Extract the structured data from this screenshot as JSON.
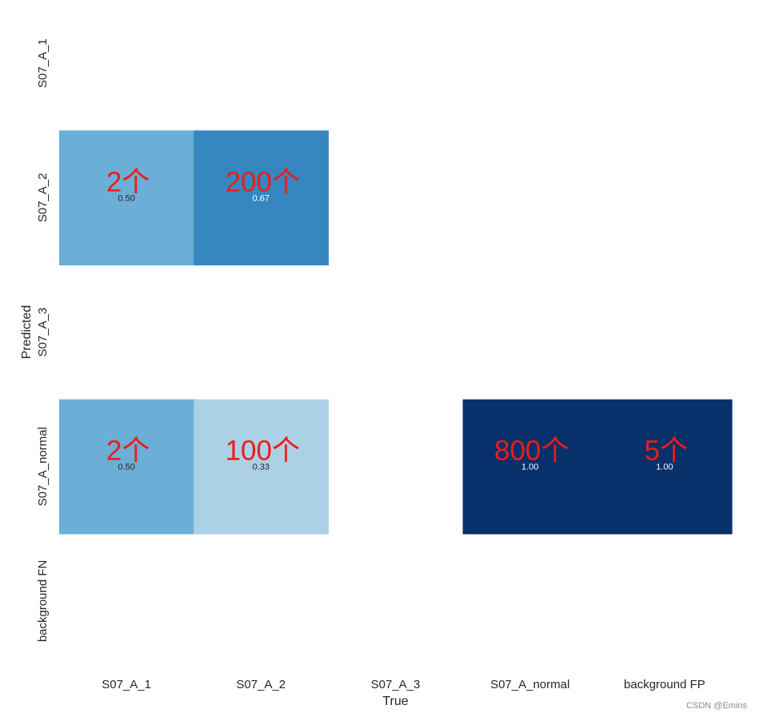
{
  "chart_data": {
    "type": "heatmap",
    "title": "",
    "xlabel": "True",
    "ylabel": "Predicted",
    "x_categories": [
      "S07_A_1",
      "S07_A_2",
      "S07_A_3",
      "S07_A_normal",
      "background FP"
    ],
    "y_categories": [
      "S07_A_1",
      "S07_A_2",
      "S07_A_3",
      "S07_A_normal",
      "background FN"
    ],
    "values": [
      [
        null,
        null,
        null,
        null,
        null
      ],
      [
        0.5,
        0.67,
        null,
        null,
        null
      ],
      [
        null,
        null,
        null,
        null,
        null
      ],
      [
        0.5,
        0.33,
        null,
        1.0,
        1.0
      ],
      [
        null,
        null,
        null,
        null,
        null
      ]
    ],
    "cell_labels": [
      [
        "",
        "",
        "",
        "",
        ""
      ],
      [
        "0.50",
        "0.67",
        "",
        "",
        ""
      ],
      [
        "",
        "",
        "",
        "",
        ""
      ],
      [
        "0.50",
        "0.33",
        "",
        "1.00",
        "1.00"
      ],
      [
        "",
        "",
        "",
        "",
        ""
      ]
    ],
    "annotations": [
      [
        "",
        "",
        "",
        "",
        ""
      ],
      [
        "2个",
        "200个",
        "",
        "",
        ""
      ],
      [
        "",
        "",
        "",
        "",
        ""
      ],
      [
        "2个",
        "100个",
        "",
        "800个",
        "5个"
      ],
      [
        "",
        "",
        "",
        "",
        ""
      ]
    ],
    "colormap": "Blues",
    "color_low": "#f7fbff",
    "color_high": "#08306b",
    "vmin": 0.0,
    "vmax": 1.0,
    "colorbar": false,
    "grid": false
  },
  "watermark": "CSDN @Emins"
}
